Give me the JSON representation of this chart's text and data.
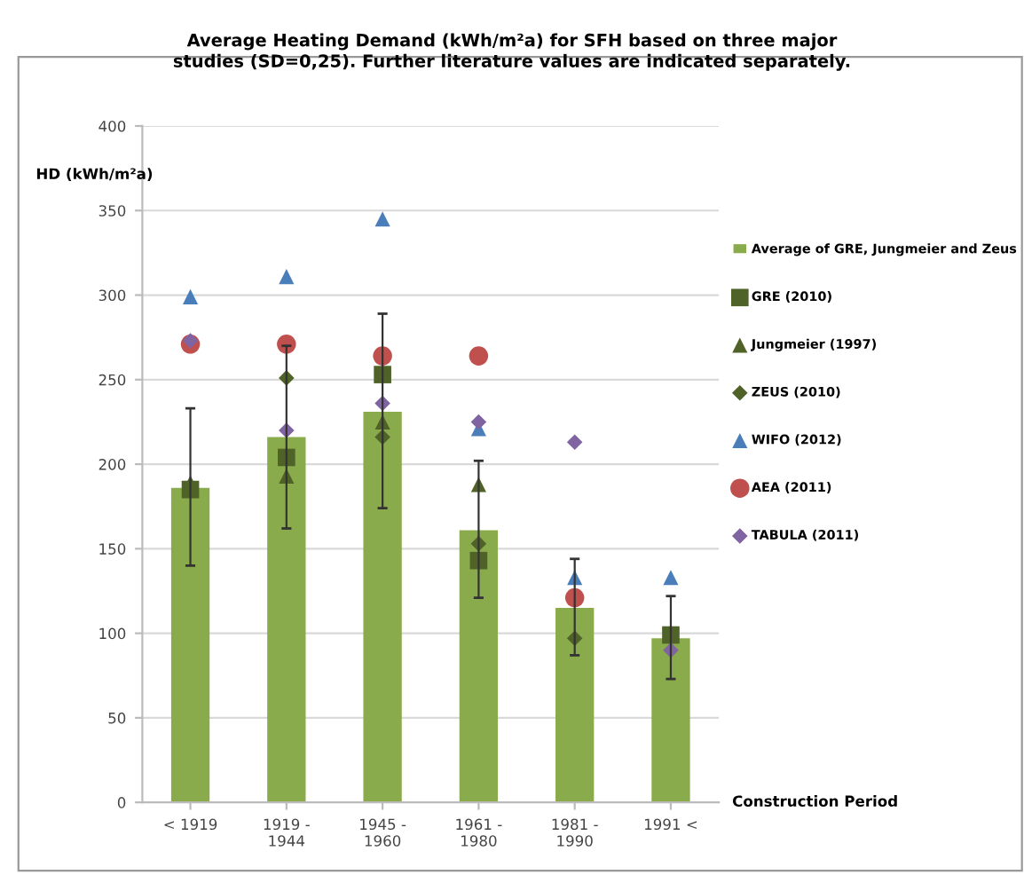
{
  "chart_data": {
    "type": "bar",
    "title": "Average Heating Demand (kWh/m²a) for SFH based on three major\nstudies (SD=0,25). Further literature values are indicated separately.",
    "ylabel": "HD (kWh/m²a)",
    "xlabel": "Construction Period",
    "categories": [
      "< 1919",
      "1919 -\n1944",
      "1945 -\n1960",
      "1961 -\n1980",
      "1981 -\n1990",
      "1991 <"
    ],
    "ylim": [
      0,
      400
    ],
    "yticks": [
      0,
      50,
      100,
      150,
      200,
      250,
      300,
      350,
      400
    ],
    "grid": "y",
    "legend": "right",
    "series": [
      {
        "name": "Average of GRE, Jungmeier and Zeus",
        "color": "#8aab4b",
        "values": [
          186,
          216,
          231,
          161,
          115,
          97
        ],
        "errors": [
          [
            140,
            233
          ],
          [
            162,
            270
          ],
          [
            174,
            289
          ],
          [
            121,
            202
          ],
          [
            87,
            144
          ],
          [
            73,
            122
          ]
        ]
      },
      {
        "name": "GRE (2010)",
        "type": "scatter",
        "marker": "square",
        "color": "#4f6228",
        "values": [
          185,
          204,
          253,
          143,
          null,
          99
        ]
      },
      {
        "name": "Jungmeier (1997)",
        "type": "scatter",
        "marker": "triangle",
        "color": "#4f6228",
        "values": [
          189,
          193,
          225,
          188,
          null,
          null
        ]
      },
      {
        "name": "ZEUS (2010)",
        "type": "scatter",
        "marker": "diamond",
        "color": "#4f6228",
        "values": [
          null,
          251,
          216,
          153,
          97,
          null
        ]
      },
      {
        "name": "WIFO (2012)",
        "type": "scatter",
        "marker": "triangle",
        "color": "#4a7ebb",
        "values": [
          299,
          311,
          345,
          221,
          133,
          133
        ]
      },
      {
        "name": "AEA (2011)",
        "type": "scatter",
        "marker": "circle",
        "color": "#c0504d",
        "values": [
          271,
          271,
          264,
          264,
          121,
          null
        ]
      },
      {
        "name": "TABULA (2011)",
        "type": "scatter",
        "marker": "diamond",
        "color": "#8064a2",
        "values": [
          273,
          220,
          236,
          225,
          213,
          90
        ]
      }
    ]
  }
}
